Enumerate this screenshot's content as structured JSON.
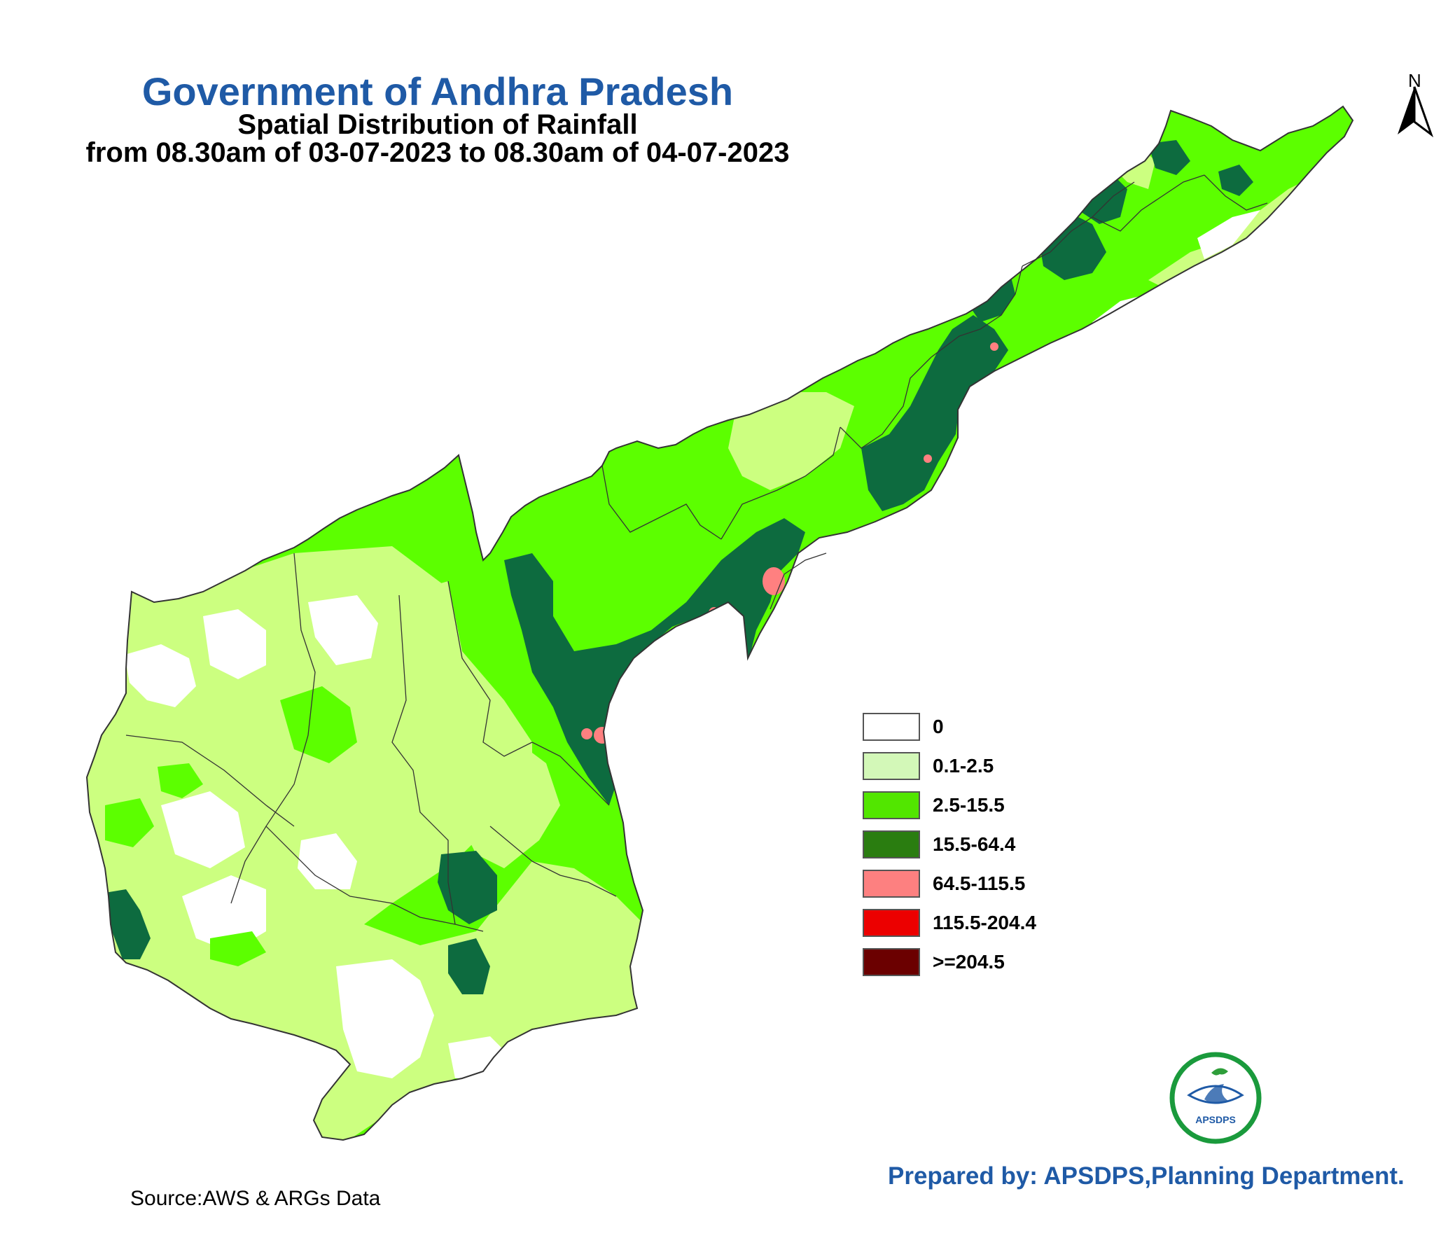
{
  "header": {
    "org_title": "Government of Andhra Pradesh",
    "subtitle": "Spatial Distribution of Rainfall",
    "date_range": "from 08.30am of 03-07-2023 to 08.30am of 04-07-2023"
  },
  "north_arrow": {
    "label": "N"
  },
  "legend": {
    "items": [
      {
        "label": "0",
        "color": "#ffffff"
      },
      {
        "label": "0.1-2.5",
        "color": "#d3f8b8"
      },
      {
        "label": "2.5-15.5",
        "color": "#52e600"
      },
      {
        "label": "15.5-64.4",
        "color": "#2a7d10"
      },
      {
        "label": "64.5-115.5",
        "color": "#fd8080"
      },
      {
        "label": "115.5-204.4",
        "color": "#ec0000"
      },
      {
        "label": ">=204.5",
        "color": "#6b0000"
      }
    ]
  },
  "map_colors": {
    "no_rain": "#ffffff",
    "very_light": "#ccff80",
    "light": "#5cff00",
    "moderate": "#0d6b3f",
    "heavy": "#ff8080",
    "boundary": "#333333"
  },
  "footer": {
    "source": "Source:AWS & ARGs Data",
    "prepared_by": "Prepared by: APSDPS,Planning Department.",
    "logo_text": "APSDPS"
  }
}
